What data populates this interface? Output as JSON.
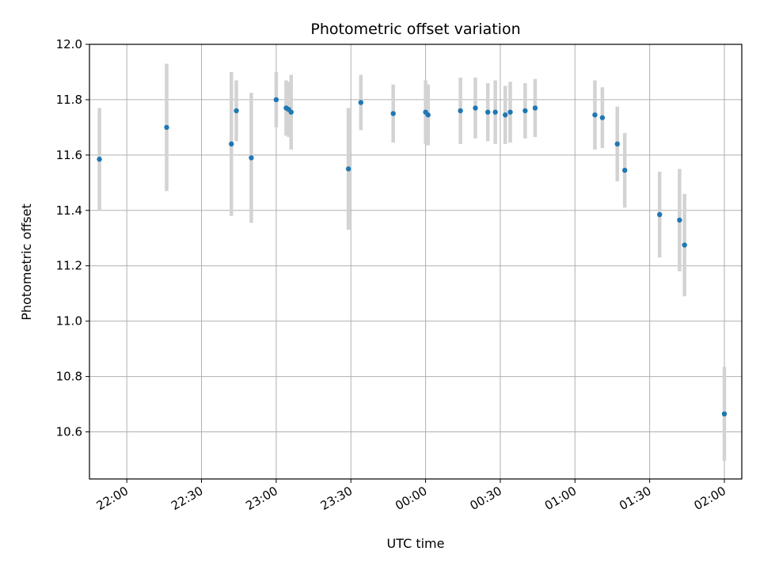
{
  "chart_data": {
    "type": "scatter",
    "title": "Photometric offset variation",
    "xlabel": "UTC time",
    "ylabel": "Photometric offset",
    "x_unit": "UTC",
    "xlim": [
      "21:45",
      "02:07"
    ],
    "ylim": [
      10.43,
      12.0
    ],
    "x_ticks": [
      "22:00",
      "22:30",
      "23:00",
      "23:30",
      "00:00",
      "00:30",
      "01:00",
      "01:30",
      "02:00"
    ],
    "y_ticks": [
      "10.6",
      "10.8",
      "11.0",
      "11.2",
      "11.4",
      "11.6",
      "11.8",
      "12.0"
    ],
    "grid": true,
    "marker_color": "#1f77b4",
    "errorbar_color": "#d3d3d3",
    "points": [
      {
        "time": "21:49",
        "y": 11.585,
        "err": 0.185
      },
      {
        "time": "22:16",
        "y": 11.7,
        "err": 0.23
      },
      {
        "time": "22:42",
        "y": 11.64,
        "err": 0.26
      },
      {
        "time": "22:44",
        "y": 11.76,
        "err": 0.11
      },
      {
        "time": "22:50",
        "y": 11.59,
        "err": 0.235
      },
      {
        "time": "23:00",
        "y": 11.8,
        "err": 0.1
      },
      {
        "time": "23:04",
        "y": 11.77,
        "err": 0.1
      },
      {
        "time": "23:05",
        "y": 11.765,
        "err": 0.1
      },
      {
        "time": "23:06",
        "y": 11.755,
        "err": 0.135
      },
      {
        "time": "23:29",
        "y": 11.55,
        "err": 0.22
      },
      {
        "time": "23:34",
        "y": 11.79,
        "err": 0.1
      },
      {
        "time": "23:47",
        "y": 11.75,
        "err": 0.105
      },
      {
        "time": "00:00",
        "y": 11.755,
        "err": 0.115
      },
      {
        "time": "00:01",
        "y": 11.745,
        "err": 0.11
      },
      {
        "time": "00:14",
        "y": 11.76,
        "err": 0.12
      },
      {
        "time": "00:20",
        "y": 11.77,
        "err": 0.11
      },
      {
        "time": "00:25",
        "y": 11.755,
        "err": 0.105
      },
      {
        "time": "00:28",
        "y": 11.755,
        "err": 0.115
      },
      {
        "time": "00:32",
        "y": 11.745,
        "err": 0.105
      },
      {
        "time": "00:34",
        "y": 11.755,
        "err": 0.11
      },
      {
        "time": "00:40",
        "y": 11.76,
        "err": 0.1
      },
      {
        "time": "00:44",
        "y": 11.77,
        "err": 0.105
      },
      {
        "time": "01:08",
        "y": 11.745,
        "err": 0.125
      },
      {
        "time": "01:11",
        "y": 11.735,
        "err": 0.11
      },
      {
        "time": "01:17",
        "y": 11.64,
        "err": 0.135
      },
      {
        "time": "01:20",
        "y": 11.545,
        "err": 0.135
      },
      {
        "time": "01:34",
        "y": 11.385,
        "err": 0.155
      },
      {
        "time": "01:42",
        "y": 11.365,
        "err": 0.185
      },
      {
        "time": "01:44",
        "y": 11.275,
        "err": 0.185
      },
      {
        "time": "02:00",
        "y": 10.665,
        "err": 0.17
      }
    ]
  }
}
